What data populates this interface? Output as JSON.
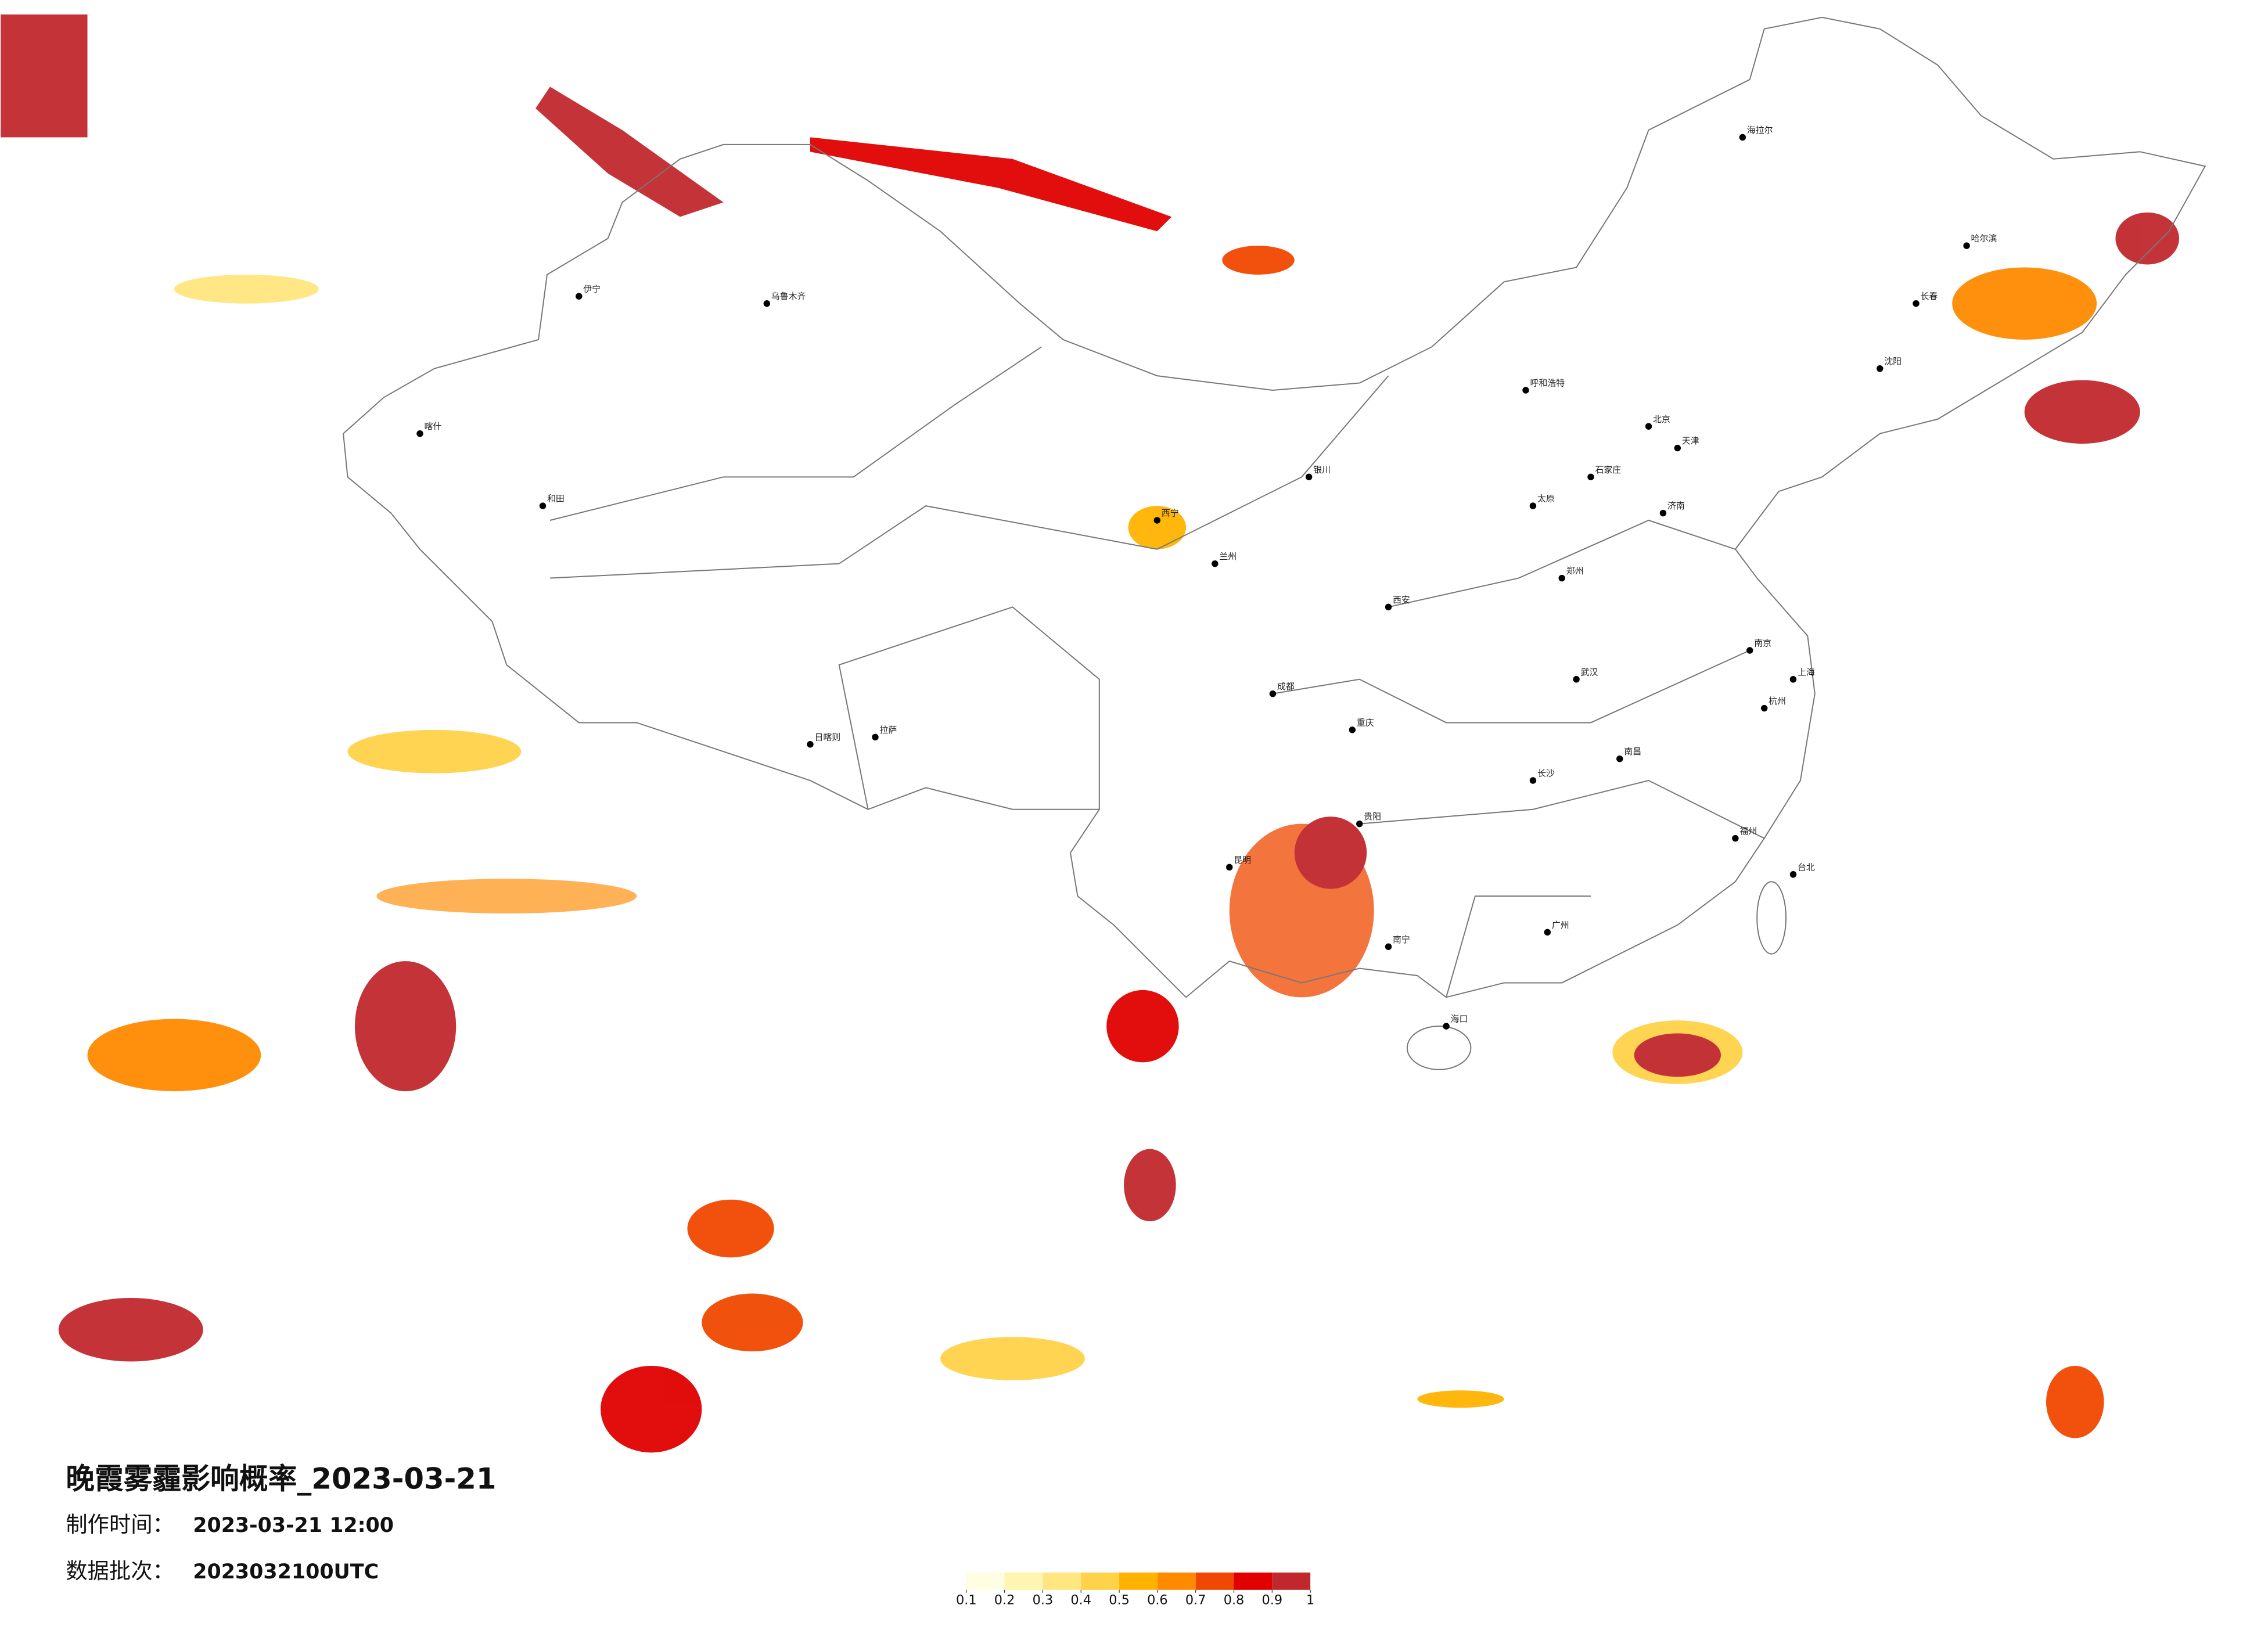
{
  "title": "晚霞雾霾影响概率_2023-03-21",
  "made_time": {
    "label": "制作时间：",
    "value": "2023-03-21 12:00"
  },
  "batch": {
    "label": "数据批次：",
    "value": "2023032100UTC"
  },
  "legend": {
    "colors": [
      "#fffde2",
      "#fff4b0",
      "#ffe680",
      "#ffd24a",
      "#ffb300",
      "#ff8a00",
      "#f04800",
      "#e00000",
      "#c0282d"
    ],
    "ticks": [
      0.1,
      0.2,
      0.3,
      0.4,
      0.5,
      0.6,
      0.7,
      0.8,
      0.9,
      1
    ]
  },
  "cities": [
    "乌鲁木齐",
    "伊宁",
    "喀什",
    "和田",
    "拉萨",
    "日喀则",
    "西宁",
    "兰州",
    "银川",
    "呼和浩特",
    "北京",
    "天津",
    "石家庄",
    "太原",
    "西安",
    "郑州",
    "济南",
    "南京",
    "上海",
    "杭州",
    "武汉",
    "长沙",
    "南昌",
    "福州",
    "广州",
    "南宁",
    "贵阳",
    "昆明",
    "成都",
    "重庆",
    "海口",
    "台北",
    "哈尔滨",
    "长春",
    "沈阳",
    "海拉尔"
  ]
}
